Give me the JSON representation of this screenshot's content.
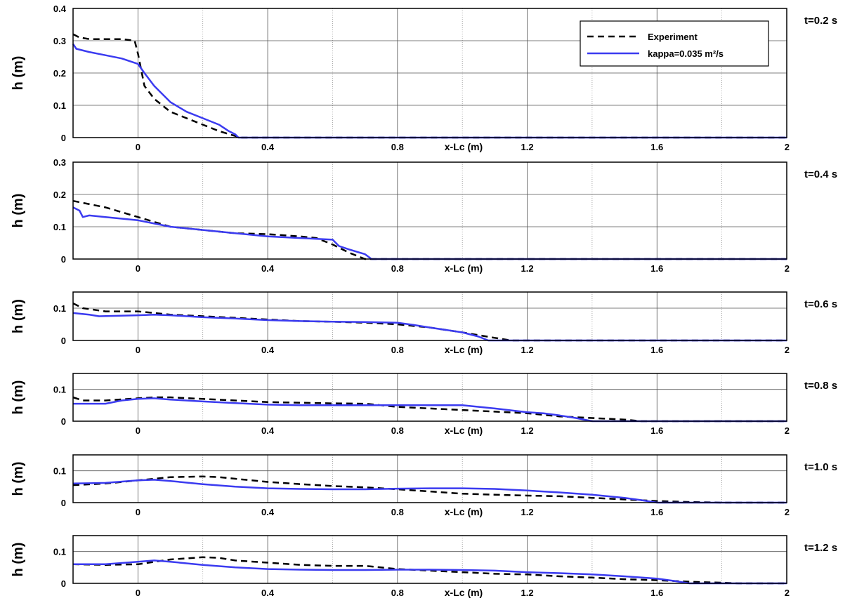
{
  "legend": {
    "position": "top-right of first panel",
    "entries": [
      {
        "label": "Experiment",
        "style": "dashed",
        "color": "#000000"
      },
      {
        "label": "kappa=0.035 m²/s",
        "style": "solid",
        "color": "#3b3bf0"
      }
    ]
  },
  "chart_data": {
    "type": "line",
    "xlabel": "x-Lc (m)",
    "ylabel": "h (m)",
    "xlim": [
      -0.2,
      2.0
    ],
    "xticks": [
      0,
      0.4,
      0.8,
      1.2,
      1.6,
      2
    ],
    "xtick_labels": [
      "0",
      "0.4",
      "0.8",
      "1.2",
      "1.6",
      "2"
    ],
    "grid": true,
    "series_names": [
      "Experiment",
      "kappa=0.035 m²/s"
    ],
    "panels": [
      {
        "time_label": "t=0.2 s",
        "ylim": [
          0,
          0.4
        ],
        "yticks": [
          0,
          0.1,
          0.2,
          0.3,
          0.4
        ],
        "ytick_labels": [
          "0",
          "0.1",
          "0.2",
          "0.3",
          "0.4"
        ],
        "series": [
          {
            "name": "Experiment",
            "x": [
              -0.2,
              -0.18,
              -0.15,
              -0.1,
              -0.05,
              -0.01,
              0.0,
              0.02,
              0.05,
              0.1,
              0.15,
              0.2,
              0.25,
              0.3,
              0.32,
              2.0
            ],
            "y": [
              0.32,
              0.31,
              0.305,
              0.305,
              0.305,
              0.3,
              0.26,
              0.16,
              0.12,
              0.08,
              0.06,
              0.04,
              0.02,
              0.005,
              0.0,
              0.0
            ]
          },
          {
            "name": "kappa=0.035 m²/s",
            "x": [
              -0.2,
              -0.19,
              -0.15,
              -0.1,
              -0.05,
              0.0,
              0.02,
              0.05,
              0.1,
              0.15,
              0.2,
              0.25,
              0.28,
              0.3,
              0.31,
              2.0
            ],
            "y": [
              0.29,
              0.275,
              0.265,
              0.255,
              0.245,
              0.228,
              0.2,
              0.16,
              0.11,
              0.08,
              0.06,
              0.04,
              0.02,
              0.01,
              0.0,
              0.0
            ]
          }
        ]
      },
      {
        "time_label": "t=0.4 s",
        "ylim": [
          0,
          0.3
        ],
        "yticks": [
          0,
          0.1,
          0.2,
          0.3
        ],
        "ytick_labels": [
          "0",
          "0.1",
          "0.2",
          "0.3"
        ],
        "series": [
          {
            "name": "Experiment",
            "x": [
              -0.2,
              -0.1,
              0.0,
              0.1,
              0.2,
              0.3,
              0.4,
              0.5,
              0.55,
              0.6,
              0.65,
              0.7,
              2.0
            ],
            "y": [
              0.18,
              0.16,
              0.13,
              0.1,
              0.09,
              0.08,
              0.077,
              0.07,
              0.065,
              0.045,
              0.02,
              0.0,
              0.0
            ]
          },
          {
            "name": "kappa=0.035 m²/s",
            "x": [
              -0.2,
              -0.18,
              -0.17,
              -0.15,
              -0.1,
              0.0,
              0.1,
              0.2,
              0.3,
              0.4,
              0.5,
              0.6,
              0.62,
              0.65,
              0.7,
              0.72,
              2.0
            ],
            "y": [
              0.16,
              0.15,
              0.13,
              0.135,
              0.13,
              0.12,
              0.1,
              0.09,
              0.08,
              0.07,
              0.065,
              0.06,
              0.04,
              0.03,
              0.015,
              0.0,
              0.0
            ]
          }
        ]
      },
      {
        "time_label": "t=0.6 s",
        "ylim": [
          0,
          0.15
        ],
        "yticks": [
          0,
          0.1
        ],
        "ytick_labels": [
          "0",
          "0.1"
        ],
        "series": [
          {
            "name": "Experiment",
            "x": [
              -0.2,
              -0.17,
              -0.1,
              0.0,
              0.1,
              0.2,
              0.3,
              0.4,
              0.5,
              0.6,
              0.7,
              0.8,
              0.9,
              1.0,
              1.1,
              1.15,
              2.0
            ],
            "y": [
              0.115,
              0.1,
              0.09,
              0.09,
              0.08,
              0.075,
              0.07,
              0.065,
              0.06,
              0.058,
              0.055,
              0.05,
              0.04,
              0.025,
              0.008,
              0.0,
              0.0
            ]
          },
          {
            "name": "kappa=0.035 m²/s",
            "x": [
              -0.2,
              -0.15,
              -0.12,
              0.0,
              0.05,
              0.1,
              0.2,
              0.3,
              0.4,
              0.5,
              0.6,
              0.7,
              0.8,
              0.85,
              0.9,
              1.0,
              1.05,
              1.08,
              2.0
            ],
            "y": [
              0.085,
              0.08,
              0.075,
              0.078,
              0.08,
              0.078,
              0.072,
              0.068,
              0.063,
              0.06,
              0.058,
              0.057,
              0.055,
              0.048,
              0.04,
              0.025,
              0.012,
              0.0,
              0.0
            ]
          }
        ]
      },
      {
        "time_label": "t=0.8 s",
        "ylim": [
          0,
          0.15
        ],
        "yticks": [
          0,
          0.1
        ],
        "ytick_labels": [
          "0",
          "0.1"
        ],
        "series": [
          {
            "name": "Experiment",
            "x": [
              -0.2,
              -0.17,
              -0.1,
              0.0,
              0.05,
              0.1,
              0.2,
              0.3,
              0.4,
              0.5,
              0.6,
              0.7,
              0.8,
              0.9,
              1.0,
              1.1,
              1.2,
              1.3,
              1.4,
              1.5,
              1.55,
              2.0
            ],
            "y": [
              0.075,
              0.065,
              0.065,
              0.072,
              0.075,
              0.075,
              0.07,
              0.065,
              0.06,
              0.058,
              0.056,
              0.055,
              0.045,
              0.04,
              0.035,
              0.03,
              0.025,
              0.015,
              0.01,
              0.005,
              0.0,
              0.0
            ]
          },
          {
            "name": "kappa=0.035 m²/s",
            "x": [
              -0.2,
              -0.1,
              -0.05,
              0.0,
              0.05,
              0.1,
              0.2,
              0.3,
              0.4,
              0.5,
              0.6,
              0.7,
              0.8,
              0.9,
              1.0,
              1.1,
              1.2,
              1.25,
              1.3,
              1.35,
              1.4,
              2.0
            ],
            "y": [
              0.055,
              0.055,
              0.065,
              0.07,
              0.072,
              0.068,
              0.062,
              0.057,
              0.052,
              0.05,
              0.05,
              0.05,
              0.05,
              0.05,
              0.05,
              0.04,
              0.028,
              0.025,
              0.018,
              0.01,
              0.0,
              0.0
            ]
          }
        ]
      },
      {
        "time_label": "t=1.0 s",
        "ylim": [
          0,
          0.15
        ],
        "yticks": [
          0,
          0.1
        ],
        "ytick_labels": [
          "0",
          "0.1"
        ],
        "series": [
          {
            "name": "Experiment",
            "x": [
              -0.2,
              -0.1,
              0.0,
              0.1,
              0.2,
              0.25,
              0.3,
              0.4,
              0.5,
              0.6,
              0.7,
              0.8,
              0.9,
              1.0,
              1.1,
              1.2,
              1.3,
              1.4,
              1.5,
              1.6,
              1.7,
              1.8,
              2.0
            ],
            "y": [
              0.055,
              0.06,
              0.07,
              0.08,
              0.082,
              0.08,
              0.075,
              0.065,
              0.058,
              0.052,
              0.048,
              0.042,
              0.035,
              0.028,
              0.025,
              0.022,
              0.02,
              0.015,
              0.01,
              0.005,
              0.002,
              0.0,
              0.0
            ]
          },
          {
            "name": "kappa=0.035 m²/s",
            "x": [
              -0.2,
              -0.1,
              0.0,
              0.05,
              0.1,
              0.2,
              0.3,
              0.4,
              0.5,
              0.6,
              0.7,
              0.8,
              0.9,
              1.0,
              1.1,
              1.2,
              1.3,
              1.4,
              1.5,
              1.55,
              1.6,
              2.0
            ],
            "y": [
              0.06,
              0.062,
              0.07,
              0.072,
              0.068,
              0.058,
              0.05,
              0.045,
              0.043,
              0.042,
              0.042,
              0.044,
              0.045,
              0.045,
              0.043,
              0.038,
              0.032,
              0.025,
              0.015,
              0.008,
              0.0,
              0.0
            ]
          }
        ]
      },
      {
        "time_label": "t=1.2 s",
        "ylim": [
          0,
          0.15
        ],
        "yticks": [
          0,
          0.1
        ],
        "ytick_labels": [
          "0",
          "0.1"
        ],
        "series": [
          {
            "name": "Experiment",
            "x": [
              -0.2,
              -0.1,
              0.0,
              0.1,
              0.2,
              0.25,
              0.3,
              0.4,
              0.5,
              0.6,
              0.7,
              0.8,
              0.9,
              1.0,
              1.1,
              1.2,
              1.3,
              1.4,
              1.5,
              1.6,
              1.7,
              1.8,
              1.85,
              2.0
            ],
            "y": [
              0.06,
              0.058,
              0.06,
              0.075,
              0.082,
              0.08,
              0.072,
              0.065,
              0.058,
              0.055,
              0.055,
              0.045,
              0.04,
              0.035,
              0.03,
              0.028,
              0.022,
              0.018,
              0.013,
              0.01,
              0.005,
              0.002,
              0.0,
              0.0
            ]
          },
          {
            "name": "kappa=0.035 m²/s",
            "x": [
              -0.2,
              -0.1,
              0.0,
              0.05,
              0.1,
              0.2,
              0.3,
              0.4,
              0.5,
              0.6,
              0.7,
              0.8,
              0.9,
              1.0,
              1.1,
              1.2,
              1.3,
              1.4,
              1.5,
              1.6,
              1.65,
              1.7,
              2.0
            ],
            "y": [
              0.06,
              0.06,
              0.068,
              0.072,
              0.068,
              0.058,
              0.05,
              0.045,
              0.043,
              0.042,
              0.042,
              0.043,
              0.043,
              0.042,
              0.04,
              0.035,
              0.032,
              0.028,
              0.022,
              0.015,
              0.008,
              0.0,
              0.0
            ]
          }
        ]
      }
    ]
  }
}
